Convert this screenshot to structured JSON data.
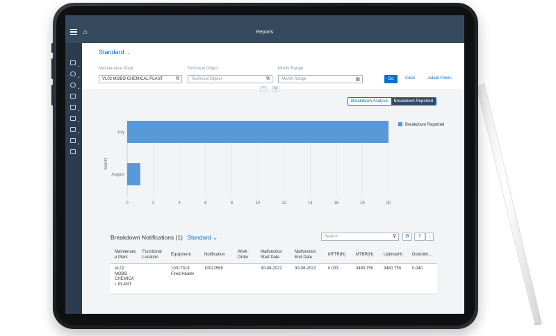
{
  "shell": {
    "title": "Reports"
  },
  "filter": {
    "variant": "Standard",
    "fields": [
      {
        "label": "Maintenance Plant",
        "value": "VL02 MOBO CHEMICAL PLANT",
        "placeholder": ""
      },
      {
        "label": "Technical Object",
        "value": "",
        "placeholder": "Technical Object"
      },
      {
        "label": "Month Range",
        "value": "",
        "placeholder": "Month Range"
      }
    ],
    "go": "Go",
    "clear": "Clear",
    "adapt": "Adapt Filters"
  },
  "toggle": {
    "analysis": "Breakdown Analysis",
    "reported": "Breakdown Reported"
  },
  "chart_data": {
    "type": "bar",
    "orientation": "horizontal",
    "categories": [
      "July",
      "August"
    ],
    "series": [
      {
        "name": "Breakdown Reported",
        "values": [
          20,
          1
        ],
        "color": "#5899da"
      }
    ],
    "xlabel": "",
    "ylabel": "Month",
    "xlim": [
      0,
      20
    ],
    "xticks": [
      0,
      2,
      4,
      6,
      8,
      10,
      12,
      14,
      16,
      18,
      20
    ],
    "grid": true,
    "legend_position": "top-right"
  },
  "table": {
    "title": "Breakdown Notifications (1)",
    "variant": "Standard",
    "search_placeholder": "Search",
    "columns": [
      [
        "Maintenanc",
        "e Plant"
      ],
      [
        "Functional",
        "Location"
      ],
      [
        "Equipment"
      ],
      [
        "Notification"
      ],
      [
        "Work",
        "Order"
      ],
      [
        "Malfunction",
        "Start Date"
      ],
      [
        "Malfunction",
        "End Date"
      ],
      [
        "MTTR(H)"
      ],
      [
        "MTBR(H)"
      ],
      [
        "Uptime(H)"
      ],
      [
        "Downtim..."
      ]
    ],
    "rows": [
      [
        [
          "VL02",
          "MOBO",
          "CHEMICA",
          "L PLANT"
        ],
        [],
        [
          "10017318",
          "Fired Heater"
        ],
        [
          "10022568"
        ],
        [],
        [
          "30-08-2022"
        ],
        [
          "30-08-2022"
        ],
        [
          "0.033"
        ],
        [
          "3480.750"
        ],
        [
          "3480.750"
        ],
        [
          "0.040"
        ]
      ]
    ]
  },
  "colors": {
    "shell": "#354a5f",
    "accent": "#0a6ed1",
    "bar": "#5899da"
  }
}
